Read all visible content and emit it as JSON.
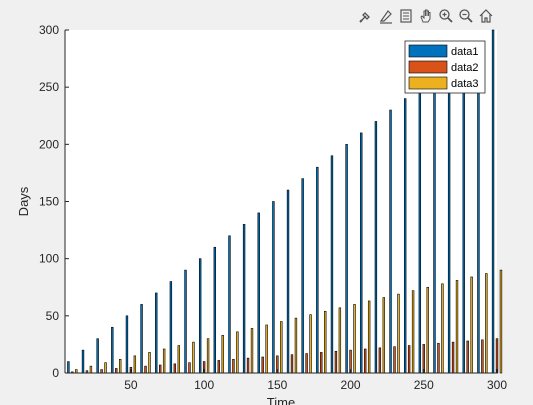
{
  "toolbar": {
    "items": [
      {
        "name": "brush-icon"
      },
      {
        "name": "data-tips-icon"
      },
      {
        "name": "legend-toggle-icon"
      },
      {
        "name": "pan-icon"
      },
      {
        "name": "zoom-in-icon"
      },
      {
        "name": "zoom-out-icon"
      },
      {
        "name": "home-icon"
      }
    ]
  },
  "chart_data": {
    "type": "bar",
    "title": "",
    "xlabel": "Time",
    "ylabel": "Days",
    "xlim": [
      5,
      300
    ],
    "ylim": [
      0,
      300
    ],
    "xticks": [
      50,
      100,
      150,
      200,
      250,
      300
    ],
    "yticks": [
      0,
      50,
      100,
      150,
      200,
      250,
      300
    ],
    "x": [
      10,
      20,
      30,
      40,
      50,
      60,
      70,
      80,
      90,
      100,
      110,
      120,
      130,
      140,
      150,
      160,
      170,
      180,
      190,
      200,
      210,
      220,
      230,
      240,
      250,
      260,
      270,
      280,
      290,
      300
    ],
    "series": [
      {
        "name": "data1",
        "color": "#0072bd",
        "values": [
          10,
          20,
          30,
          40,
          50,
          60,
          70,
          80,
          90,
          100,
          110,
          120,
          130,
          140,
          150,
          160,
          170,
          180,
          190,
          200,
          210,
          220,
          230,
          240,
          250,
          260,
          270,
          280,
          290,
          300
        ]
      },
      {
        "name": "data2",
        "color": "#d95319",
        "values": [
          1,
          2,
          3,
          4,
          5,
          6,
          7,
          8,
          9,
          10,
          11,
          12,
          13,
          14,
          15,
          16,
          17,
          18,
          19,
          20,
          21,
          22,
          23,
          24,
          25,
          26,
          27,
          28,
          29,
          30
        ]
      },
      {
        "name": "data3",
        "color": "#edb120",
        "values": [
          3,
          6,
          9,
          12,
          15,
          18,
          21,
          24,
          27,
          30,
          33,
          36,
          39,
          42,
          45,
          48,
          51,
          54,
          57,
          60,
          63,
          66,
          69,
          72,
          75,
          78,
          81,
          84,
          87,
          90
        ]
      }
    ],
    "legend": "top-right",
    "grid": false
  }
}
